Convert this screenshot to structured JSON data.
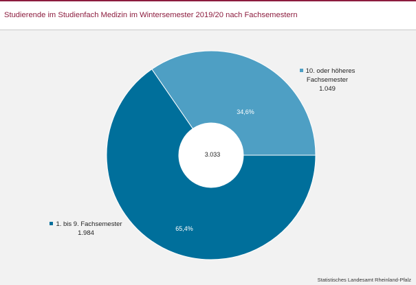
{
  "source": "Statistisches Landesamt Rheinland-Pfalz",
  "colors": {
    "accent": "#8c1c3e",
    "plot_background": "#f2f2f2"
  },
  "chart_data": {
    "type": "pie",
    "donut": true,
    "title": "Studierende im Studienfach Medizin im Wintersemester 2019/20 nach Fachsemestern",
    "total": 3033,
    "total_label": "3.033",
    "slices": [
      {
        "label": "1. bis 9. Fachsemester",
        "value": 1984,
        "value_label": "1.984",
        "percent": 65.4,
        "percent_label": "65,4%",
        "color": "#006f9b"
      },
      {
        "label": "10. oder höheres Fachsemester",
        "value": 1049,
        "value_label": "1.049",
        "percent": 34.6,
        "percent_label": "34,6%",
        "color": "#4e9fc4"
      }
    ]
  }
}
